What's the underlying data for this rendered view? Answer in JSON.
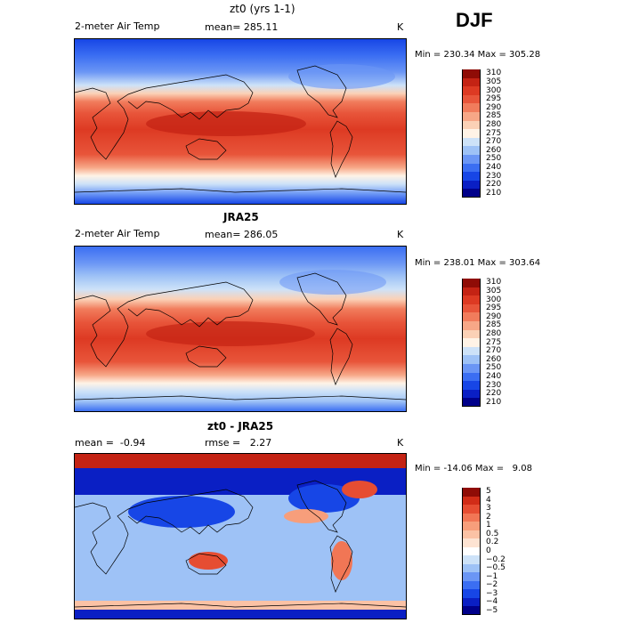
{
  "season": "DJF",
  "panels": [
    {
      "title": "zt0 (yrs 1-1)",
      "left_label": "2-meter Air Temp",
      "center_label": "mean= 285.11",
      "units": "K",
      "stats": "Min = 230.34 Max = 305.28",
      "kind": "abs"
    },
    {
      "title": "JRA25",
      "left_label": "2-meter Air Temp",
      "center_label": "mean= 286.05",
      "units": "K",
      "stats": "Min = 238.01 Max = 303.64",
      "kind": "abs"
    },
    {
      "title": "zt0 - JRA25",
      "left_label": "mean =  -0.94",
      "center_label": "rmse =   2.27",
      "units": "K",
      "stats": "Min = -14.06 Max =   9.08",
      "kind": "diff"
    }
  ],
  "colorbars": {
    "abs": {
      "colors": [
        "#00008a",
        "#0a1fc4",
        "#1746e6",
        "#3b6ef2",
        "#6b96f5",
        "#9ec2f6",
        "#cde2f8",
        "#fff3e6",
        "#fbd1b6",
        "#f7a787",
        "#f17c5c",
        "#e8553a",
        "#dd3a23",
        "#c42314",
        "#8f0c06"
      ],
      "labels": [
        "310",
        "305",
        "300",
        "295",
        "290",
        "285",
        "280",
        "275",
        "270",
        "260",
        "250",
        "240",
        "230",
        "220",
        "210"
      ]
    },
    "diff": {
      "colors": [
        "#00008a",
        "#0a1fc4",
        "#1746e6",
        "#3b6ef2",
        "#6b96f5",
        "#9ec2f6",
        "#cde2f8",
        "#ffffff",
        "#fde3d2",
        "#fbc2a5",
        "#f79e7b",
        "#f17655",
        "#e64d32",
        "#d12c17",
        "#8f0c06"
      ],
      "labels": [
        "5",
        "4",
        "3",
        "2",
        "1",
        "0.5",
        "0.2",
        "0",
        "−0.2",
        "−0.5",
        "−1",
        "−2",
        "−3",
        "−4",
        "−5"
      ]
    }
  },
  "chart_data": [
    {
      "type": "heatmap",
      "title": "zt0 (yrs 1-1)",
      "subtitle": "2-meter Air Temp",
      "mean": 285.11,
      "units": "K",
      "min": 230.34,
      "max": 305.28,
      "color_levels": [
        210,
        220,
        230,
        240,
        250,
        260,
        270,
        275,
        280,
        285,
        290,
        295,
        300,
        305,
        310
      ]
    },
    {
      "type": "heatmap",
      "title": "JRA25",
      "subtitle": "2-meter Air Temp",
      "mean": 286.05,
      "units": "K",
      "min": 238.01,
      "max": 303.64,
      "color_levels": [
        210,
        220,
        230,
        240,
        250,
        260,
        270,
        275,
        280,
        285,
        290,
        295,
        300,
        305,
        310
      ]
    },
    {
      "type": "heatmap",
      "title": "zt0 - JRA25",
      "mean": -0.94,
      "rmse": 2.27,
      "units": "K",
      "min": -14.06,
      "max": 9.08,
      "color_levels": [
        -5,
        -4,
        -3,
        -2,
        -1,
        -0.5,
        -0.2,
        0,
        0.2,
        0.5,
        1,
        2,
        3,
        4,
        5
      ]
    }
  ]
}
